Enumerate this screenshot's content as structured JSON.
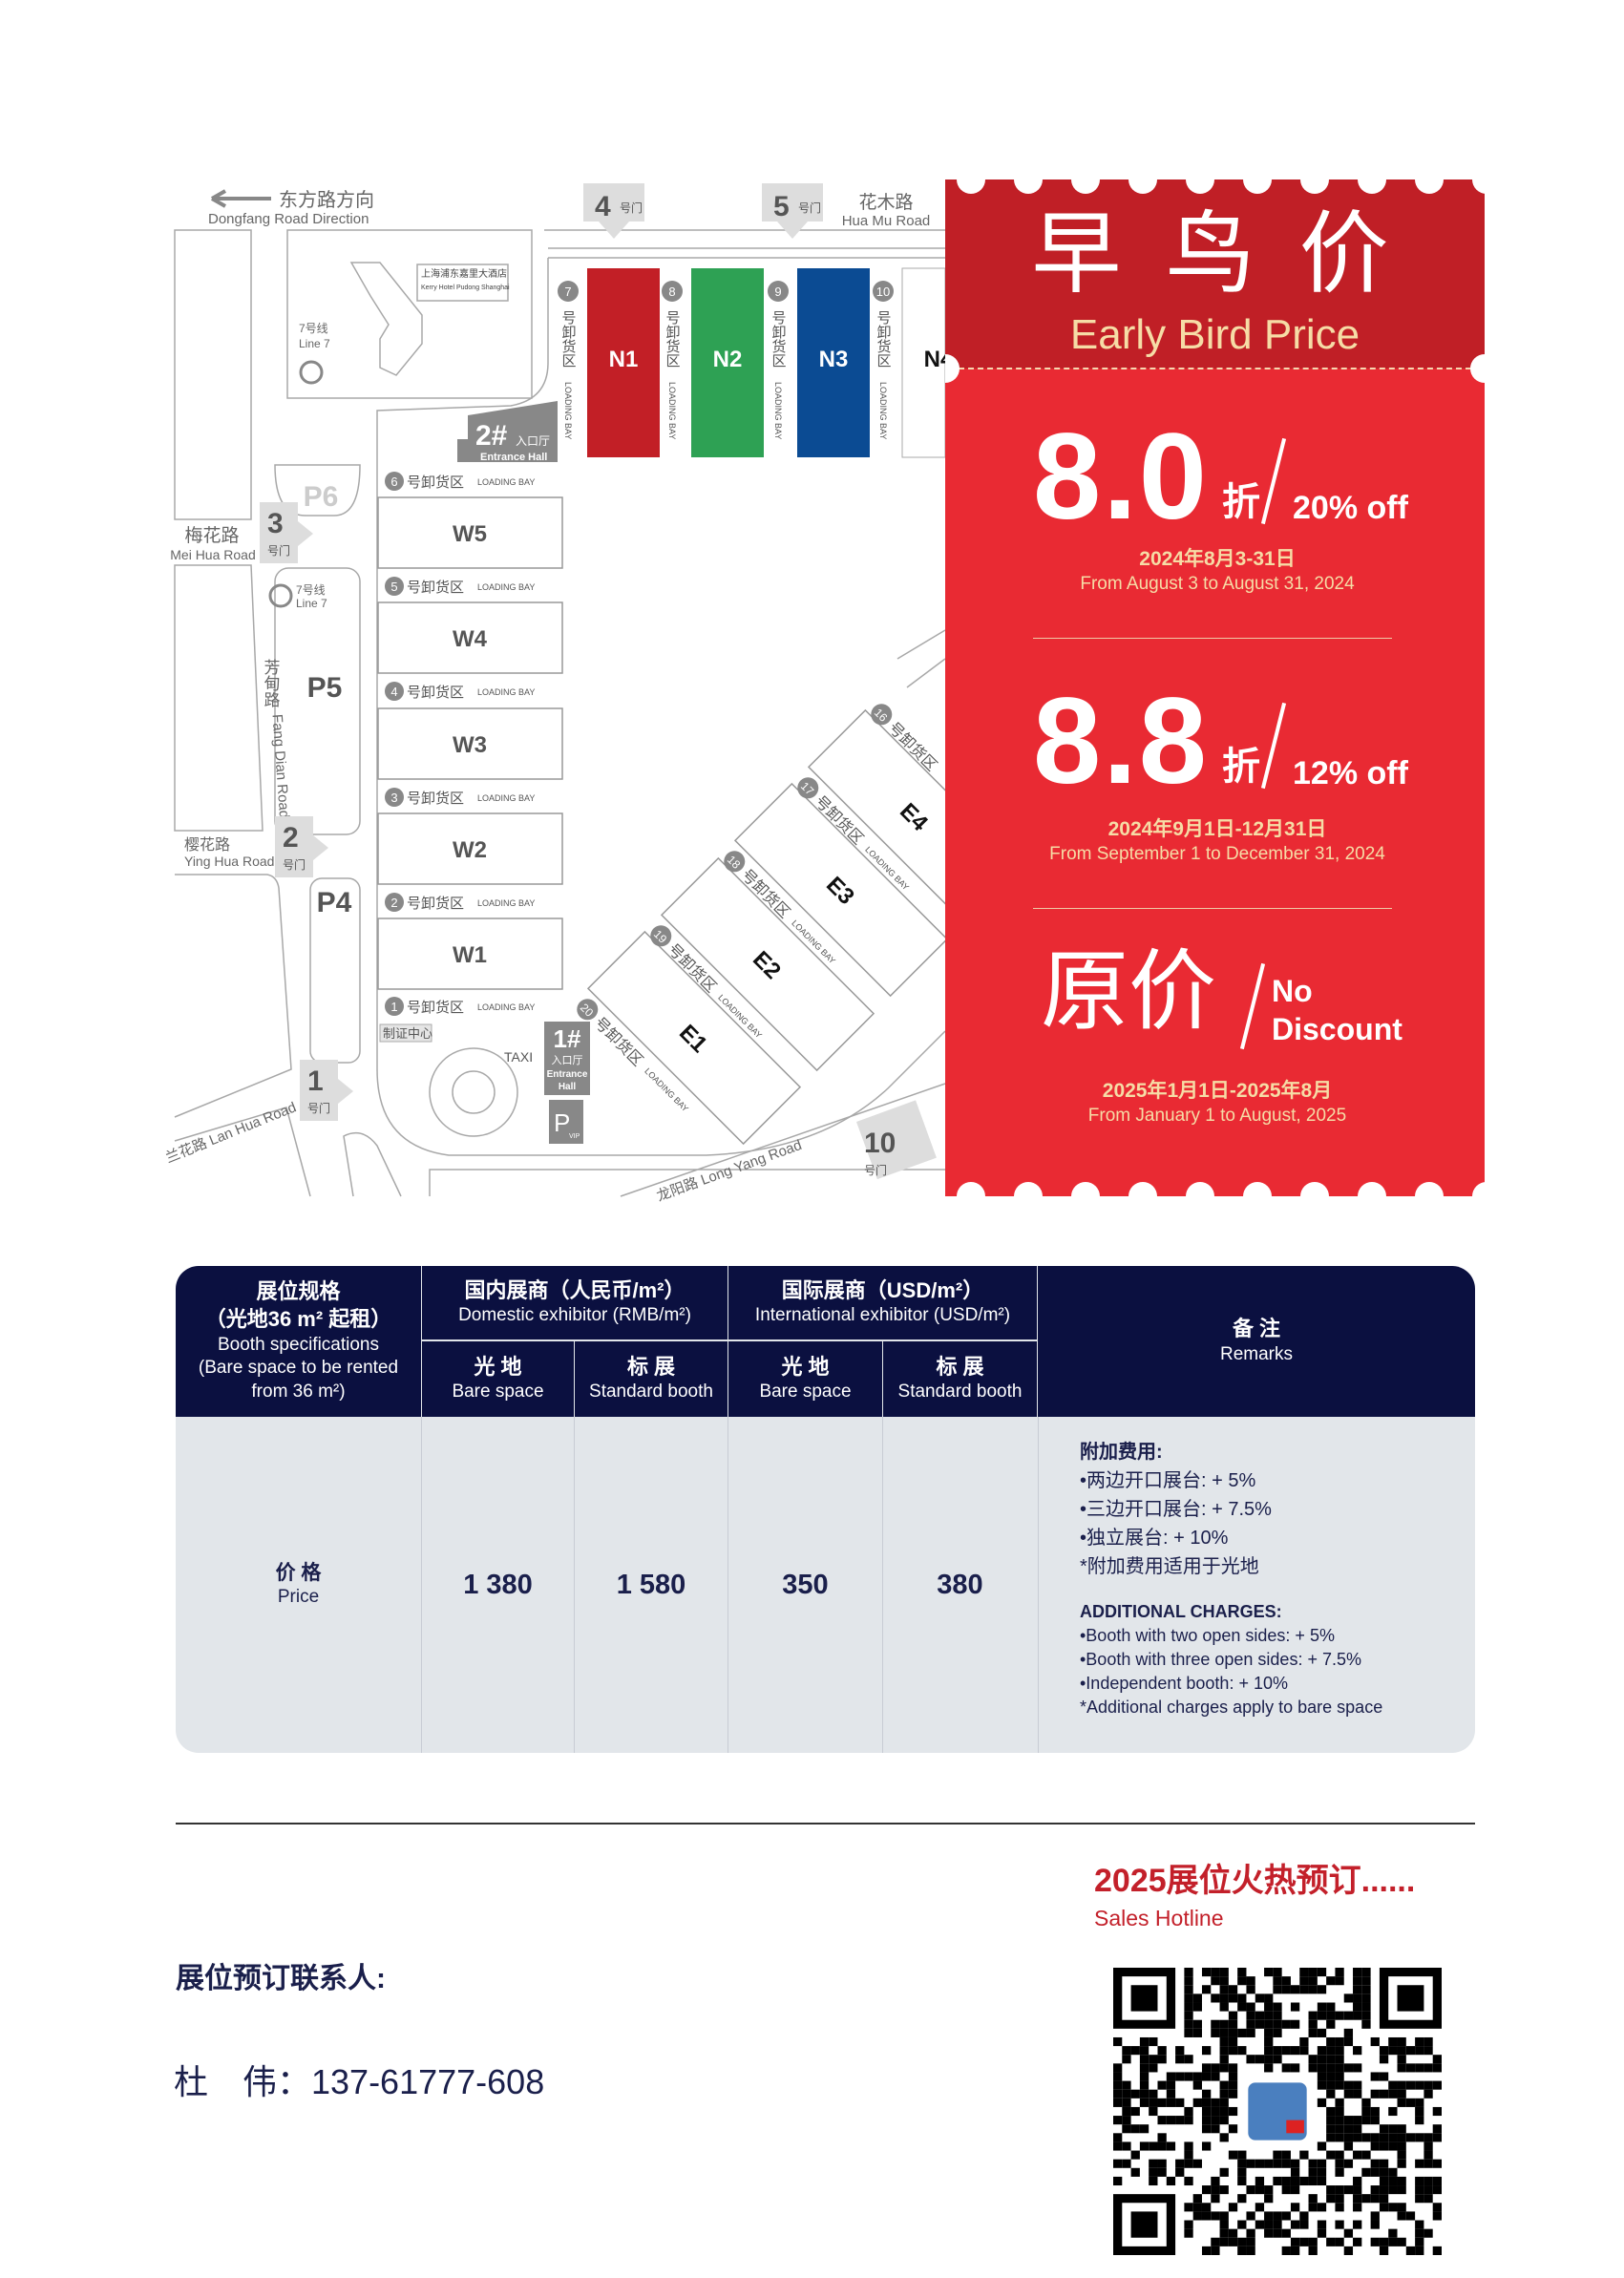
{
  "map": {
    "dongfang_zh": "东方路方向",
    "dongfang_en": "Dongfang Road Direction",
    "huamu_zh": "花木路",
    "huamu_en": "Hua Mu Road",
    "meihua_zh": "梅花路",
    "meihua_en": "Mei Hua Road",
    "yinghua_zh": "樱花路",
    "yinghua_en": "Ying Hua Road",
    "fangdian_zh": "芳甸路",
    "fangdian_en": "Fang Dian Road",
    "lanhua": "兰花路 Lan Hua Road",
    "longyang": "龙阳路 Long Yang Road",
    "hotel_zh": "上海浦东嘉里大酒店",
    "hotel_en": "Kerry Hotel Pudong Shanghai",
    "line7_zh": "7号线",
    "line7_en": "Line 7",
    "gate_suffix": "号门",
    "gates": [
      "4",
      "5",
      "3",
      "2",
      "1",
      "10"
    ],
    "north_halls": [
      {
        "name": "N1",
        "color": "#c21f26",
        "bay": "7"
      },
      {
        "name": "N2",
        "color": "#2ea154",
        "bay": "8"
      },
      {
        "name": "N3",
        "color": "#0b4b93",
        "bay": "9"
      },
      {
        "name": "N4",
        "color": "#ffffff",
        "bay": "10"
      }
    ],
    "west_halls": [
      "W5",
      "W4",
      "W3",
      "W2",
      "W1"
    ],
    "west_bays": [
      "6",
      "5",
      "4",
      "3",
      "2",
      "1"
    ],
    "east_halls": [
      {
        "name": "E1",
        "bay": "20"
      },
      {
        "name": "E2",
        "bay": "19"
      },
      {
        "name": "E3",
        "bay": "18"
      },
      {
        "name": "E4",
        "bay": "17"
      }
    ],
    "east_extra_bay": "16",
    "bay_zh": "号卸货区",
    "bay_en": "LOADING BAY",
    "parking": [
      "P6",
      "P5",
      "P4"
    ],
    "entrance2": {
      "num": "2#",
      "zh": "入口厅",
      "en": "Entrance Hall"
    },
    "entrance1": {
      "num": "1#",
      "zh": "入口厅",
      "en1": "Entrance",
      "en2": "Hall"
    },
    "cert_center": "制证中心",
    "taxi": "TAXI",
    "pvip": {
      "p": "P",
      "sub": "VIP"
    }
  },
  "promo": {
    "title_zh": "早 鸟 价",
    "title_en": "Early Bird Price",
    "colors": {
      "header": "#c01f26",
      "body": "#e92a33",
      "accent": "#f6dca6"
    },
    "tiers": [
      {
        "rate": "8.0",
        "zhe": "折",
        "off": "20% off",
        "date_zh": "2024年8月3-31日",
        "date_en": "From August 3 to August 31, 2024"
      },
      {
        "rate": "8.8",
        "zhe": "折",
        "off": "12% off",
        "date_zh": "2024年9月1日-12月31日",
        "date_en": "From September 1 to December 31, 2024"
      },
      {
        "rate": "原价",
        "off1": "No",
        "off2": "Discount",
        "date_zh": "2025年1月1日-2025年8月",
        "date_en": "From January 1 to August, 2025"
      }
    ]
  },
  "table": {
    "col_spec": {
      "zh1": "展位规格",
      "zh2": "（光地36 m² 起租）",
      "en1": "Booth specifications",
      "en2": "(Bare space to be rented",
      "en3": "from 36 m²)"
    },
    "domestic": {
      "zh": "国内展商（人民币/m²）",
      "en": "Domestic exhibitor (RMB/m²)"
    },
    "international": {
      "zh": "国际展商（USD/m²）",
      "en": "International exhibitor (USD/m²)"
    },
    "sub": [
      {
        "zh": "光 地",
        "en": "Bare space"
      },
      {
        "zh": "标 展",
        "en": "Standard booth"
      },
      {
        "zh": "光 地",
        "en": "Bare space"
      },
      {
        "zh": "标 展",
        "en": "Standard booth"
      }
    ],
    "remarks_head": {
      "zh": "备 注",
      "en": "Remarks"
    },
    "row_label": {
      "zh": "价 格",
      "en": "Price"
    },
    "prices": [
      "1 380",
      "1 580",
      "350",
      "380"
    ],
    "remarks": {
      "zh_title": "附加费用:",
      "zh_lines": [
        "•两边开口展台: + 5%",
        "•三边开口展台: + 7.5%",
        "•独立展台: + 10%",
        "*附加费用适用于光地"
      ],
      "en_title": "ADDITIONAL CHARGES:",
      "en_lines": [
        "•Booth with two open sides: + 5%",
        "•Booth with three open sides: + 7.5%",
        "•Independent booth: + 10%",
        "*Additional charges apply to bare space"
      ]
    }
  },
  "footer": {
    "hot_title": "2025展位火热预订......",
    "hotline": "Sales Hotline",
    "contact_label": "展位预订联系人:",
    "contact": "杜　伟：137-61777-608"
  }
}
